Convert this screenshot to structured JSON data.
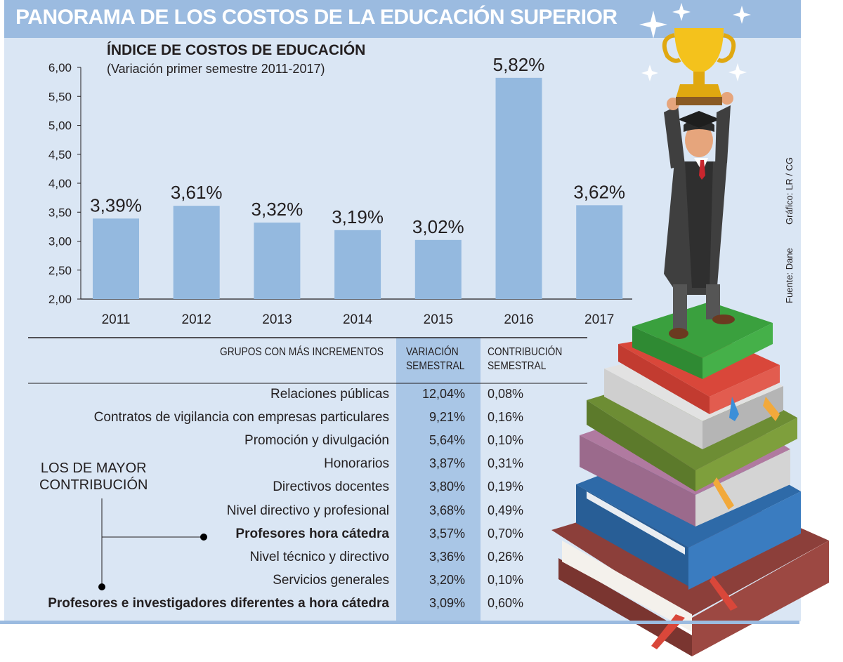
{
  "header": {
    "title": "PANORAMA DE LOS COSTOS DE LA EDUCACIÓN SUPERIOR"
  },
  "chart_data": {
    "type": "bar",
    "title": "ÍNDICE DE COSTOS DE EDUCACIÓN",
    "subtitle": "(Variación primer semestre 2011-2017)",
    "categories": [
      "2011",
      "2012",
      "2013",
      "2014",
      "2015",
      "2016",
      "2017"
    ],
    "values": [
      3.39,
      3.61,
      3.32,
      3.19,
      3.02,
      5.82,
      3.62
    ],
    "value_labels": [
      "3,39%",
      "3,61%",
      "3,32%",
      "3,19%",
      "3,02%",
      "5,82%",
      "3,62%"
    ],
    "y_ticks": [
      "2,00",
      "2,50",
      "3,00",
      "3,50",
      "4,00",
      "4,50",
      "5,00",
      "5,50",
      "6,00"
    ],
    "ylim": [
      2,
      6
    ],
    "grid": false,
    "bar_color": "#94b9df"
  },
  "credits": {
    "graphic": "Gráfico: LR / CG",
    "source": "Fuente: Dane"
  },
  "table": {
    "headers": {
      "group": "GRUPOS CON MÁS INCREMENTOS",
      "variation_1": "VARIACIÓN",
      "variation_2": "SEMESTRAL",
      "contribution_1": "CONTRIBUCIÓN",
      "contribution_2": "SEMESTRAL"
    },
    "rows": [
      {
        "group": "Relaciones públicas",
        "variation": "12,04%",
        "contribution": "0,08%"
      },
      {
        "group": "Contratos de vigilancia con empresas particulares",
        "variation": "9,21%",
        "contribution": "0,16%"
      },
      {
        "group": "Promoción y divulgación",
        "variation": "5,64%",
        "contribution": "0,10%"
      },
      {
        "group": "Honorarios",
        "variation": "3,87%",
        "contribution": "0,31%"
      },
      {
        "group": "Directivos docentes",
        "variation": "3,80%",
        "contribution": "0,19%"
      },
      {
        "group": "Nivel directivo y profesional",
        "variation": "3,68%",
        "contribution": "0,49%"
      },
      {
        "group": "Profesores hora cátedra",
        "variation": "3,57%",
        "contribution": "0,70%"
      },
      {
        "group": "Nivel técnico y directivo",
        "variation": "3,36%",
        "contribution": "0,26%"
      },
      {
        "group": "Servicios generales",
        "variation": "3,20%",
        "contribution": "0,10%"
      },
      {
        "group": "Profesores e investigadores diferentes a hora cátedra",
        "variation": "3,09%",
        "contribution": "0,60%"
      }
    ]
  },
  "callout": {
    "line1": "LOS DE MAYOR",
    "line2": "CONTRIBUCIÓN"
  },
  "illustration": {
    "subject": "graduate-with-trophy-on-books"
  }
}
